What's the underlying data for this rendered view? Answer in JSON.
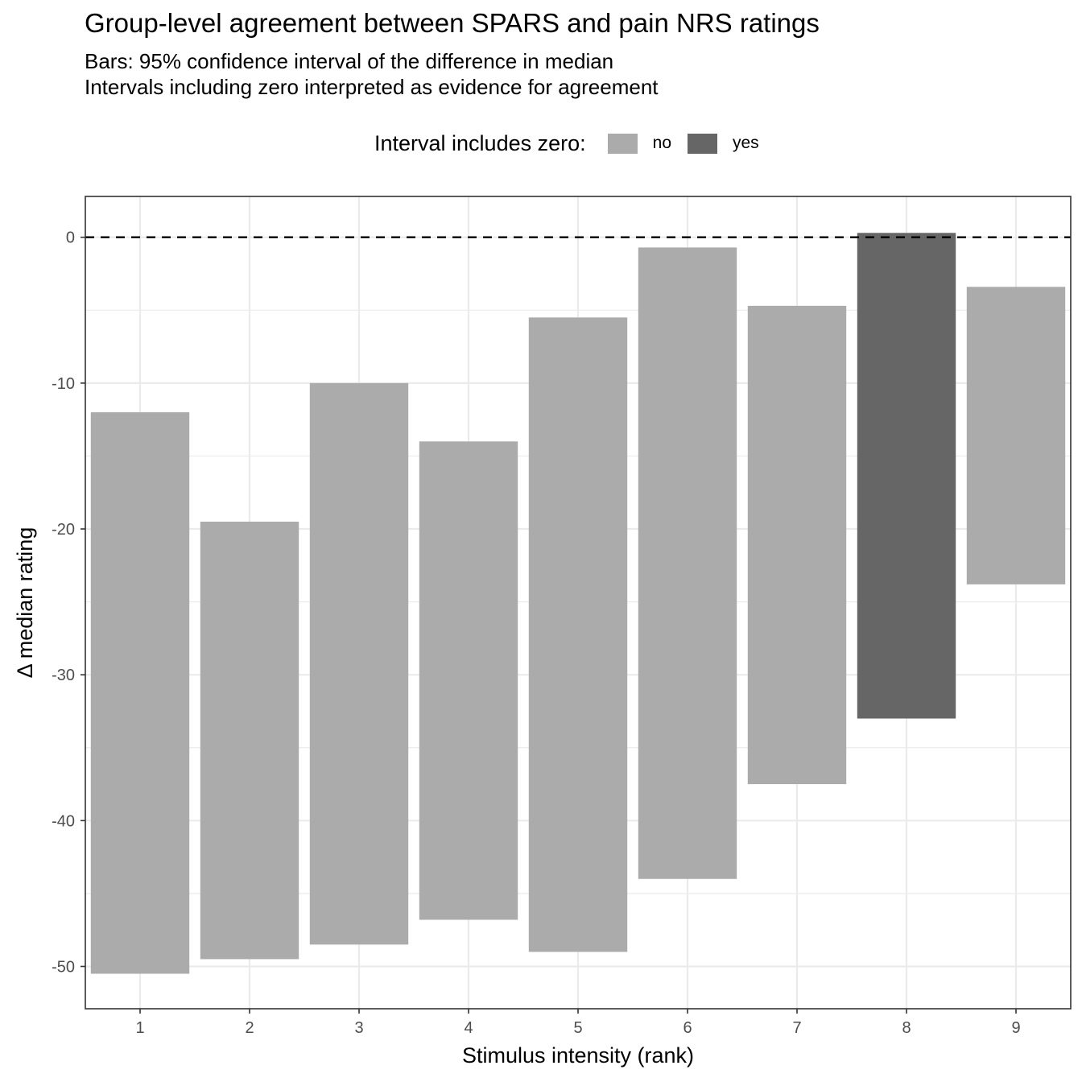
{
  "chart_data": {
    "type": "bar",
    "title": "Group-level agreement between SPARS and pain NRS ratings",
    "subtitle": [
      "Bars: 95% confidence interval of the difference in median",
      "Intervals including zero interpreted as evidence for agreement"
    ],
    "xlabel": "Stimulus intensity (rank)",
    "ylabel": "Δ median rating",
    "categories": [
      "1",
      "2",
      "3",
      "4",
      "5",
      "6",
      "7",
      "8",
      "9"
    ],
    "intervals": [
      {
        "x": "1",
        "lower": -50.5,
        "upper": -12.0,
        "includes_zero": "no"
      },
      {
        "x": "2",
        "lower": -49.5,
        "upper": -19.5,
        "includes_zero": "no"
      },
      {
        "x": "3",
        "lower": -48.5,
        "upper": -10.0,
        "includes_zero": "no"
      },
      {
        "x": "4",
        "lower": -46.8,
        "upper": -14.0,
        "includes_zero": "no"
      },
      {
        "x": "5",
        "lower": -49.0,
        "upper": -5.5,
        "includes_zero": "no"
      },
      {
        "x": "6",
        "lower": -44.0,
        "upper": -0.7,
        "includes_zero": "no"
      },
      {
        "x": "7",
        "lower": -37.5,
        "upper": -4.7,
        "includes_zero": "no"
      },
      {
        "x": "8",
        "lower": -33.0,
        "upper": 0.3,
        "includes_zero": "yes"
      },
      {
        "x": "9",
        "lower": -23.8,
        "upper": -3.4,
        "includes_zero": "no"
      }
    ],
    "yticks": [
      0,
      -10,
      -20,
      -30,
      -40,
      -50
    ],
    "ytick_labels": [
      "0",
      "-10",
      "-20",
      "-30",
      "-40",
      "-50"
    ],
    "ylim": [
      -52.9,
      2.8
    ],
    "reference_line": {
      "y": 0,
      "style": "dashed"
    },
    "grid": true,
    "legend": {
      "title": "Interval includes zero:",
      "position": "top",
      "items": [
        {
          "label": "no",
          "color": "#ababab"
        },
        {
          "label": "yes",
          "color": "#666666"
        }
      ]
    }
  }
}
